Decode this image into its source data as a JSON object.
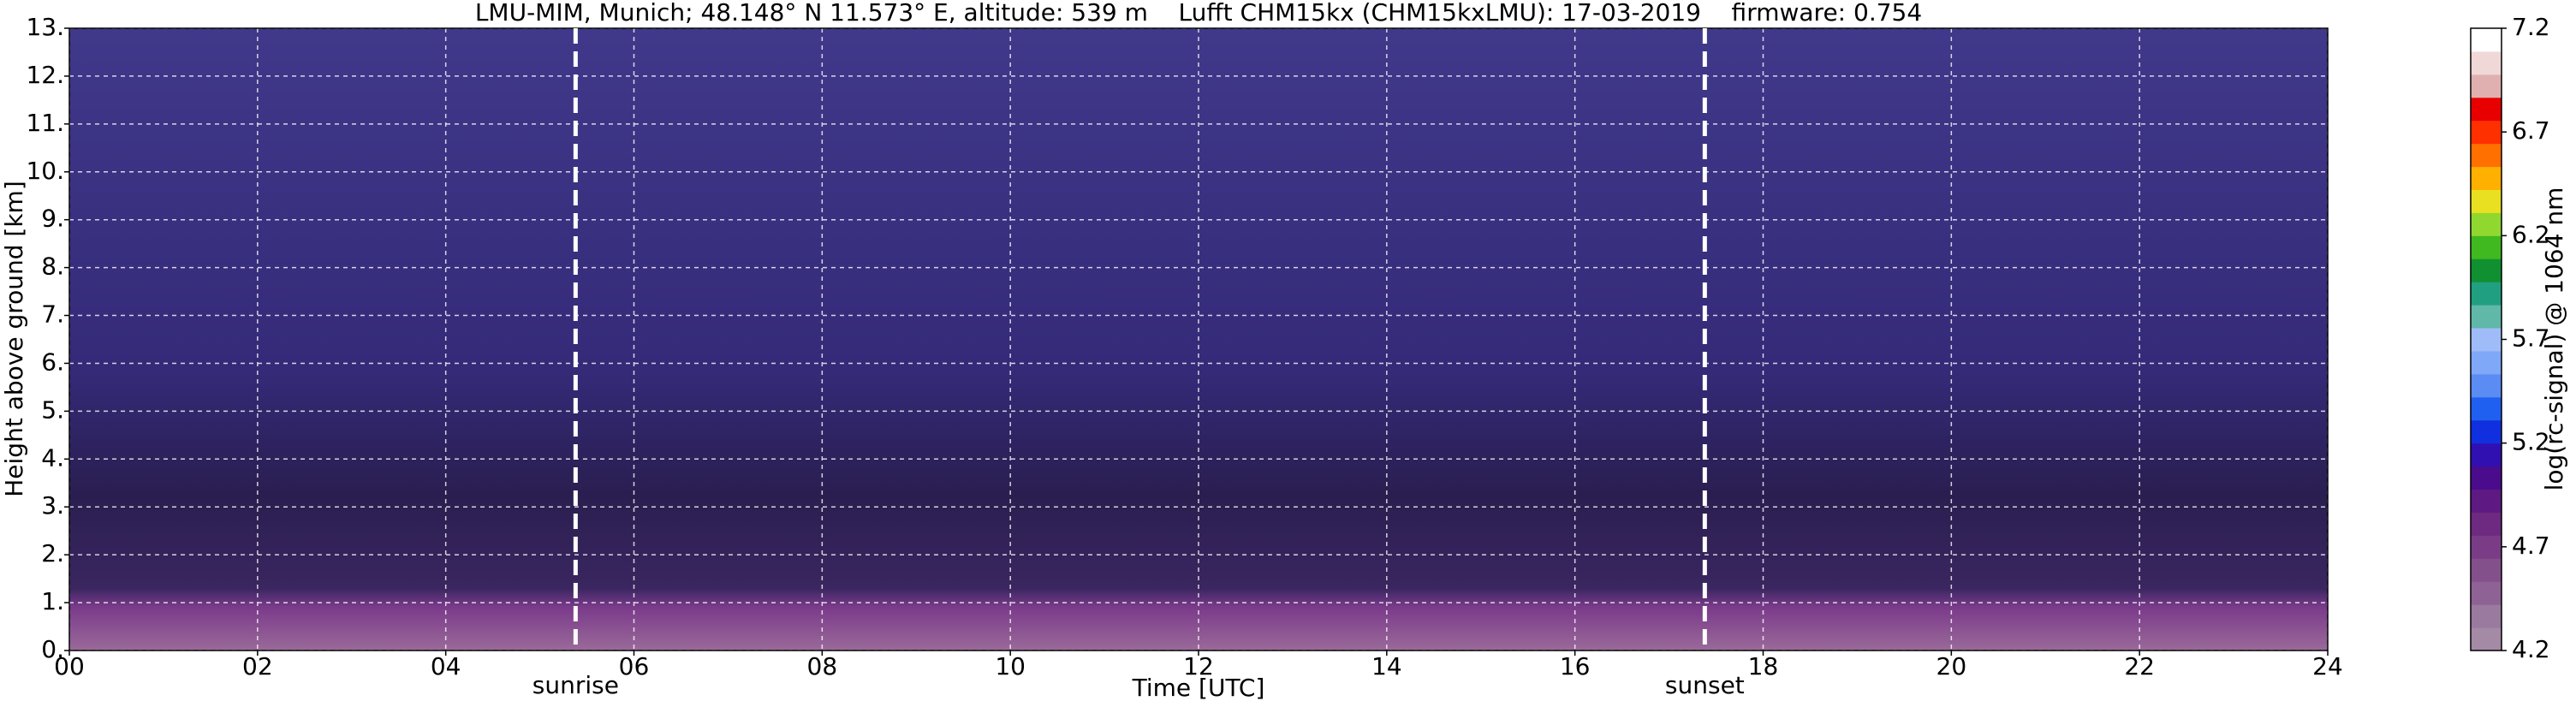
{
  "chart_data": {
    "type": "heatmap",
    "title": "LMU-MIM, Munich; 48.148° N 11.573° E, altitude: 539 m    Lufft CHM15kx (CHM15kxLMU): 17-03-2019    firmware: 0.754",
    "xlabel": "Time [UTC]",
    "ylabel": "Height above ground [km]",
    "xlim": [
      0,
      24
    ],
    "xticks": [
      {
        "value": 0,
        "label": "00"
      },
      {
        "value": 2,
        "label": "02"
      },
      {
        "value": 4,
        "label": "04"
      },
      {
        "value": 6,
        "label": "06"
      },
      {
        "value": 8,
        "label": "08"
      },
      10,
      12,
      14,
      16,
      18,
      20,
      22,
      24
    ],
    "ylim": [
      0,
      13
    ],
    "yticks": [
      {
        "value": 0,
        "label": "0."
      },
      {
        "value": 1,
        "label": "1."
      },
      {
        "value": 2,
        "label": "2."
      },
      {
        "value": 3,
        "label": "3."
      },
      {
        "value": 4,
        "label": "4."
      },
      {
        "value": 5,
        "label": "5."
      },
      {
        "value": 6,
        "label": "6."
      },
      {
        "value": 7,
        "label": "7."
      },
      {
        "value": 8,
        "label": "8."
      },
      {
        "value": 9,
        "label": "9."
      },
      {
        "value": 10,
        "label": "10."
      },
      {
        "value": 11,
        "label": "11."
      },
      {
        "value": 12,
        "label": "12."
      },
      {
        "value": 13,
        "label": "13."
      }
    ],
    "grid": true,
    "annotations": [
      {
        "label": "sunrise",
        "x": 5.38
      },
      {
        "label": "sunset",
        "x": 17.38
      }
    ],
    "colorbar": {
      "label": "log(rc-signal) @ 1064 nm",
      "clim": [
        4.2,
        7.2
      ],
      "ticks": [
        4.2,
        4.7,
        5.2,
        5.7,
        6.2,
        6.7,
        7.2
      ],
      "colors": [
        "#a48aa4",
        "#9a7a9e",
        "#8e6294",
        "#84508c",
        "#7a3c86",
        "#6e2a80",
        "#5e1a82",
        "#4a0c8c",
        "#3010b0",
        "#1030e0",
        "#2060f0",
        "#5a8cf4",
        "#80a8f8",
        "#a0bcf8",
        "#60b8a8",
        "#20a080",
        "#109030",
        "#40b820",
        "#90d830",
        "#e8e020",
        "#ffb000",
        "#ff7000",
        "#ff3000",
        "#e80000",
        "#e0b0b0",
        "#f0d8d8",
        "#ffffff"
      ]
    }
  }
}
